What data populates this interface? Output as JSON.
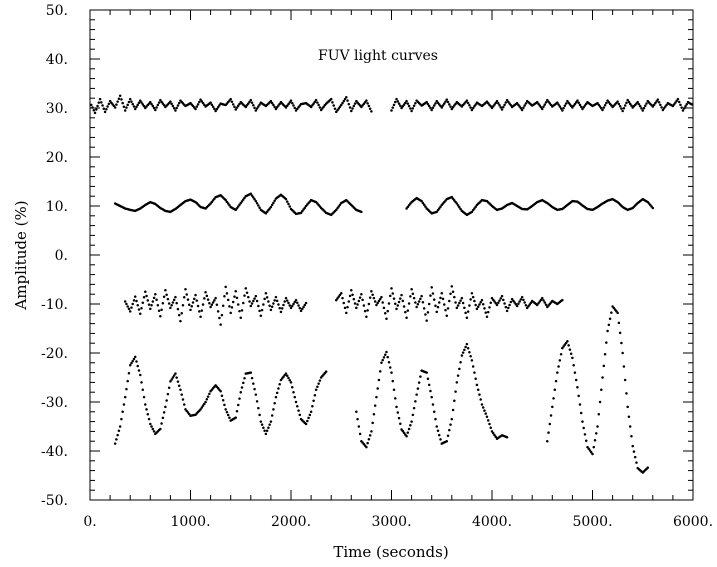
{
  "chart_data": {
    "type": "scatter",
    "title": "",
    "annotation": "FUV light curves",
    "xlabel": "Time (seconds)",
    "ylabel": "Amplitude (%)",
    "xlim": [
      0,
      6000
    ],
    "ylim": [
      -50,
      50
    ],
    "x_ticks": [
      0,
      1000,
      2000,
      3000,
      4000,
      5000,
      6000
    ],
    "x_tick_labels": [
      "0.",
      "1000.",
      "2000.",
      "3000.",
      "4000.",
      "5000.",
      "6000."
    ],
    "y_ticks": [
      50,
      40,
      30,
      20,
      10,
      0,
      -10,
      -20,
      -30,
      -40,
      -50
    ],
    "y_tick_labels": [
      "50.",
      "40.",
      "30.",
      "20.",
      "10.",
      "0.",
      "-10.",
      "-20.",
      "-30.",
      "-40.",
      "-50."
    ],
    "grid": false,
    "legend": "none",
    "marker_color": "#000000",
    "series": [
      {
        "segments": [
          {
            "x": [
              -50,
              0,
              50,
              100,
              150,
              200,
              250,
              300,
              350,
              400,
              450,
              500,
              550,
              600,
              650,
              700,
              750,
              800,
              850,
              900,
              950,
              1000,
              1050,
              1100,
              1150,
              1200,
              1250,
              1300,
              1350,
              1400,
              1450,
              1500,
              1550,
              1600,
              1650,
              1700,
              1750,
              1800,
              1850,
              1900,
              1950,
              2000,
              2050,
              2100,
              2150,
              2200,
              2250,
              2300,
              2350,
              2400,
              2450,
              2500,
              2550,
              2600,
              2650,
              2700,
              2750,
              2800
            ],
            "y": [
              30.5,
              31.2,
              29,
              31.8,
              29.2,
              31.4,
              30.1,
              32.5,
              29.5,
              31.8,
              29.8,
              31.5,
              30,
              31.2,
              29.6,
              31.6,
              30.2,
              31.3,
              29.5,
              31.5,
              30.4,
              31,
              29.8,
              31.7,
              30.3,
              31.1,
              29.4,
              30.9,
              30.6,
              31.8,
              29.7,
              31.2,
              30.2,
              31.6,
              29.5,
              31.1,
              30.4,
              31.4,
              29.8,
              31.2,
              30.1,
              31.5,
              29.5,
              30.8,
              31,
              30.2,
              31.6,
              29.6,
              30.9,
              31.8,
              29.2,
              30.6,
              32.2,
              29.4,
              31.4,
              30.2,
              31.5,
              29.3
            ]
          },
          {
            "x": [
              3000,
              3050,
              3100,
              3150,
              3200,
              3250,
              3300,
              3350,
              3400,
              3450,
              3500,
              3550,
              3600,
              3650,
              3700,
              3750,
              3800,
              3850,
              3900,
              3950,
              4000,
              4050,
              4100,
              4150,
              4200,
              4250,
              4300,
              4350,
              4400,
              4450,
              4500,
              4550,
              4600,
              4650,
              4700,
              4750,
              4800,
              4850,
              4900,
              4950,
              5000,
              5050,
              5100,
              5150,
              5200,
              5250,
              5300,
              5350,
              5400,
              5450,
              5500,
              5550,
              5600,
              5650,
              5700,
              5750,
              5800,
              5850,
              5900,
              5950,
              6000
            ],
            "y": [
              29.5,
              31.8,
              30,
              31.4,
              29.4,
              31.5,
              30.5,
              31.2,
              29.6,
              31.4,
              30.1,
              31.7,
              29.8,
              31.2,
              30.3,
              31.5,
              29.6,
              31.1,
              30.4,
              31.3,
              30,
              31.4,
              29.7,
              31.6,
              30.2,
              31,
              29.6,
              31.4,
              30.5,
              31.2,
              29.8,
              31.6,
              30.3,
              31.1,
              29.5,
              31.4,
              30.1,
              31.5,
              29.8,
              31.2,
              30.4,
              31,
              29.6,
              31.5,
              30.2,
              31.3,
              29.4,
              31.6,
              30.1,
              31.2,
              29.5,
              31.4,
              30.3,
              31.7,
              29.6,
              31,
              30.4,
              31.8,
              29.5,
              31.2,
              30.6
            ]
          }
        ]
      },
      {
        "segments": [
          {
            "x": [
              250,
              300,
              350,
              400,
              450,
              500,
              550,
              600,
              650,
              700,
              750,
              800,
              850,
              900,
              950,
              1000,
              1050,
              1100,
              1150,
              1200,
              1250,
              1300,
              1350,
              1400,
              1450,
              1500,
              1550,
              1600,
              1650,
              1700,
              1750,
              1800,
              1850,
              1900,
              1950,
              2000,
              2050,
              2100,
              2150,
              2200,
              2250,
              2300,
              2350,
              2400,
              2450,
              2500,
              2550,
              2600,
              2650,
              2700
            ],
            "y": [
              10.5,
              10,
              9.5,
              9.2,
              9,
              9.5,
              10.2,
              10.8,
              10.4,
              9.6,
              9,
              8.8,
              9.4,
              10.2,
              11,
              11.3,
              10.8,
              9.8,
              9.5,
              10.5,
              11.8,
              12.2,
              11.2,
              9.8,
              9.2,
              10.6,
              12,
              12.5,
              11,
              9.2,
              8.5,
              9.8,
              11.5,
              12.3,
              11.4,
              9.4,
              8.4,
              8.6,
              10,
              11.2,
              10.8,
              9.6,
              8.6,
              8.2,
              9.2,
              10.6,
              11.2,
              10.2,
              9.2,
              8.8
            ]
          },
          {
            "x": [
              3150,
              3200,
              3250,
              3300,
              3350,
              3400,
              3450,
              3500,
              3550,
              3600,
              3650,
              3700,
              3750,
              3800,
              3850,
              3900,
              3950,
              4000,
              4050,
              4100,
              4150,
              4200,
              4250,
              4300,
              4350,
              4400,
              4450,
              4500,
              4550,
              4600,
              4650,
              4700,
              4750,
              4800,
              4850,
              4900,
              4950,
              5000,
              5050,
              5100,
              5150,
              5200,
              5250,
              5300,
              5350,
              5400,
              5450,
              5500,
              5550,
              5600
            ],
            "y": [
              9.5,
              10.8,
              11.6,
              11,
              9.5,
              8.5,
              8.8,
              10.2,
              11.4,
              11.8,
              10.5,
              9,
              8.2,
              8.8,
              10.2,
              11.2,
              11,
              10,
              9.2,
              9.5,
              10.2,
              10.6,
              10,
              9.4,
              9.3,
              10,
              10.8,
              11.2,
              10.6,
              9.8,
              9.2,
              9.4,
              10.2,
              11,
              10.9,
              10.1,
              9.4,
              9.2,
              9.8,
              10.5,
              11.1,
              11.4,
              10.8,
              9.8,
              9.2,
              9.6,
              10.6,
              11.4,
              10.8,
              9.6
            ]
          }
        ]
      },
      {
        "segments": [
          {
            "x": [
              350,
              400,
              450,
              500,
              550,
              600,
              650,
              700,
              750,
              800,
              850,
              900,
              950,
              1000,
              1050,
              1100,
              1150,
              1200,
              1250,
              1300,
              1350,
              1400,
              1450,
              1500,
              1550,
              1600,
              1650,
              1700,
              1750,
              1800,
              1850,
              1900,
              1950,
              2000,
              2050,
              2100,
              2150
            ],
            "y": [
              -9.5,
              -11.5,
              -8.5,
              -12,
              -7.5,
              -11,
              -8,
              -12.5,
              -7.2,
              -10.8,
              -8.6,
              -13.5,
              -7,
              -11.2,
              -8.2,
              -12.6,
              -7.6,
              -10.6,
              -8.8,
              -14.2,
              -6.5,
              -11.8,
              -7.4,
              -12.8,
              -6.8,
              -10.4,
              -8.4,
              -12.4,
              -7.8,
              -11.2,
              -8.6,
              -11.6,
              -8.8,
              -10.8,
              -9.2,
              -11.4,
              -9.8
            ]
          },
          {
            "x": [
              2450,
              2500,
              2550,
              2600,
              2650,
              2700,
              2750,
              2800,
              2850,
              2900,
              2950,
              3000,
              3050,
              3100,
              3150,
              3200,
              3250,
              3300,
              3350,
              3400,
              3450,
              3500,
              3550,
              3600,
              3650,
              3700,
              3750,
              3800,
              3850,
              3900,
              3950,
              4000,
              4050,
              4100,
              4150,
              4200,
              4250,
              4300,
              4350,
              4400,
              4450,
              4500,
              4550,
              4600,
              4650,
              4700
            ],
            "y": [
              -9.2,
              -7.8,
              -11.8,
              -7.2,
              -10.8,
              -8,
              -12.6,
              -7.4,
              -10.2,
              -8.6,
              -13,
              -6.8,
              -11,
              -8.2,
              -12.8,
              -7,
              -10.6,
              -8.4,
              -13.4,
              -6.6,
              -11.6,
              -7.8,
              -12.4,
              -6.4,
              -10.8,
              -8.8,
              -12.8,
              -7.8,
              -11,
              -9.2,
              -12.6,
              -8.8,
              -10.2,
              -8.4,
              -11.4,
              -9,
              -10.4,
              -8.6,
              -10.8,
              -9.4,
              -10.2,
              -8.8,
              -10.6,
              -9.4,
              -10,
              -9.2
            ]
          }
        ]
      },
      {
        "segments": [
          {
            "x": [
              250,
              300,
              350,
              400,
              450,
              500,
              550,
              600,
              650,
              700,
              750,
              800,
              850,
              900,
              950,
              1000,
              1050,
              1100,
              1150,
              1200,
              1250,
              1300,
              1350,
              1400,
              1450,
              1500,
              1550,
              1600,
              1650,
              1700,
              1750,
              1800,
              1850,
              1900,
              1950,
              2000,
              2050,
              2100,
              2150,
              2200,
              2250,
              2300,
              2350
            ],
            "y": [
              -38.5,
              -35,
              -29,
              -22.5,
              -20.8,
              -24.5,
              -30.5,
              -34.5,
              -36.5,
              -35.5,
              -31,
              -25.8,
              -24.2,
              -27.5,
              -31.5,
              -32.8,
              -32.6,
              -31.5,
              -30,
              -27.8,
              -26.6,
              -27.8,
              -31.5,
              -33.8,
              -33.2,
              -28,
              -24.2,
              -24,
              -28.5,
              -34,
              -36.5,
              -34,
              -29,
              -25.5,
              -24.2,
              -26,
              -30,
              -33.5,
              -34.5,
              -32,
              -27.5,
              -25,
              -23.8
            ]
          },
          {
            "x": [
              2650,
              2700,
              2750,
              2800,
              2850,
              2900,
              2950,
              3000,
              3050,
              3100,
              3150,
              3200,
              3250,
              3300,
              3350,
              3400,
              3450,
              3500,
              3550,
              3600,
              3650,
              3700,
              3750,
              3800,
              3850,
              3900,
              3950,
              4000,
              4050,
              4100,
              4150
            ],
            "y": [
              -32,
              -38,
              -39.2,
              -36,
              -29,
              -22,
              -19.8,
              -24,
              -31,
              -35.6,
              -37,
              -34,
              -28.5,
              -23.6,
              -24,
              -29,
              -35,
              -38.5,
              -38,
              -33.5,
              -26,
              -20.5,
              -18.2,
              -21.5,
              -26.5,
              -30.5,
              -33,
              -36,
              -37.5,
              -36.8,
              -37.2
            ]
          },
          {
            "x": [
              4550,
              4600,
              4650,
              4700,
              4750,
              4800,
              4850,
              4900,
              4950,
              5000,
              5050,
              5100,
              5150,
              5200,
              5250,
              5300,
              5350,
              5400,
              5450,
              5500,
              5550
            ],
            "y": [
              -38,
              -31,
              -24,
              -19,
              -17.6,
              -21,
              -27,
              -34,
              -39.2,
              -40.6,
              -35,
              -25,
              -15.5,
              -10.5,
              -11.8,
              -20,
              -31,
              -39,
              -43.5,
              -44.4,
              -43.4
            ]
          }
        ]
      }
    ]
  }
}
